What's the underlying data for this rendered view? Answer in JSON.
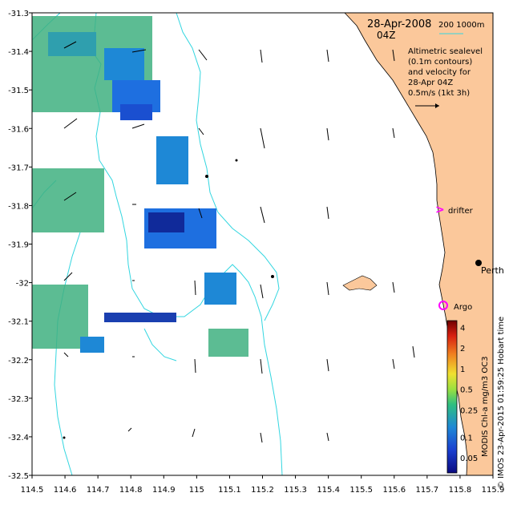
{
  "header": {
    "date": "28-Apr-2008",
    "time": "04Z",
    "scale_label": "200   1000m",
    "legend_lines": [
      "Altimetric sealevel",
      "(0.1m contours)",
      "and velocity for",
      "28-Apr 04Z"
    ],
    "velocity_ref": "0.5m/s (1kt 3h)"
  },
  "labels": {
    "drifter": "drifter",
    "perth": "Perth",
    "argo": "Argo",
    "right_credit": "© IMOS 23-Apr-2015 01:59:25 Hobart time",
    "colorbar_title": "MODIS Chl-a mg/m3 OC3"
  },
  "axes": {
    "x_ticks": [
      "114.5",
      "114.6",
      "114.7",
      "114.8",
      "114.9",
      "115",
      "115.1",
      "115.2",
      "115.3",
      "115.4",
      "115.5",
      "115.6",
      "115.7",
      "115.8",
      "115.9"
    ],
    "y_ticks": [
      "-31.3",
      "-31.4",
      "-31.5",
      "-31.6",
      "-31.7",
      "-31.8",
      "-31.9",
      "-32",
      "-32.1",
      "-32.2",
      "-32.3",
      "-32.4",
      "-32.5"
    ],
    "xlim": [
      114.5,
      115.9
    ],
    "ylim": [
      -32.5,
      -31.3
    ]
  },
  "colorbar": {
    "ticks": [
      "4",
      "2",
      "1",
      "0.5",
      "0.25",
      "0.1",
      "0.05"
    ],
    "values": [
      4,
      2,
      1,
      0.5,
      0.25,
      0.1,
      0.05
    ]
  },
  "colors": {
    "land": "#fbc89b",
    "contour": "#33d6e0",
    "drifter_marker": "#ff00ff",
    "argo_marker": "#ff00ff"
  }
}
